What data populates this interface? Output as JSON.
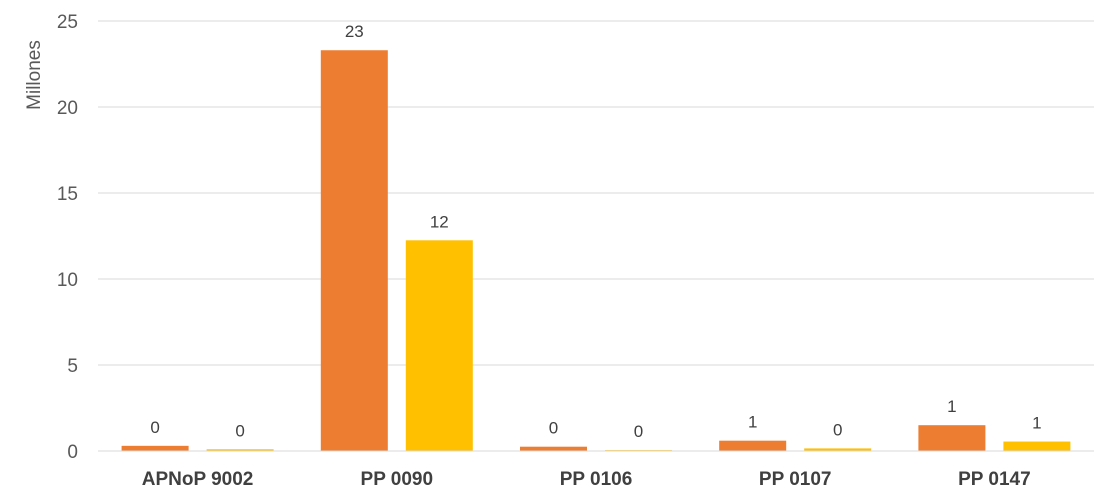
{
  "chart_data": {
    "type": "bar",
    "title": "",
    "xlabel": "",
    "ylabel": "Millones",
    "ylim": [
      0,
      25
    ],
    "yticks": [
      0,
      5,
      10,
      15,
      20,
      25
    ],
    "grid": true,
    "categories": [
      "APNoP 9002",
      "PP 0090",
      "PP 0106",
      "PP 0107",
      "PP 0147"
    ],
    "series": [
      {
        "values": [
          0.3,
          23.3,
          0.25,
          0.6,
          1.5
        ],
        "labels": [
          "0",
          "23",
          "0",
          "1",
          "1"
        ],
        "color": "#ED7D31"
      },
      {
        "values": [
          0.1,
          12.25,
          0.05,
          0.15,
          0.55
        ],
        "labels": [
          "0",
          "12",
          "0",
          "0",
          "1"
        ],
        "color": "#FFC000"
      }
    ]
  }
}
